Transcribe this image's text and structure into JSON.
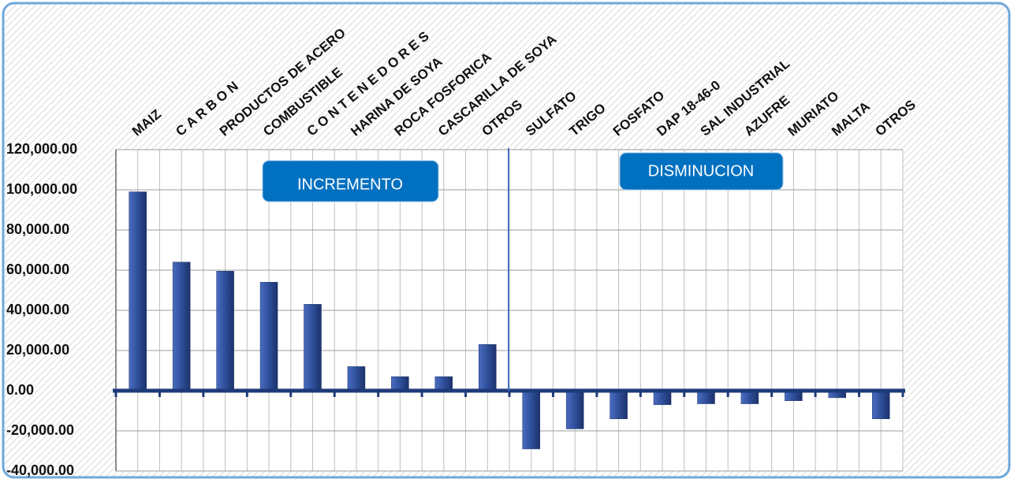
{
  "chart_data": {
    "type": "bar",
    "categories": [
      "MAIZ",
      "C A R B O N",
      "PRODUCTOS DE ACERO",
      "COMBUSTIBLE",
      "C O N T E N E D O R E S",
      "HARINA DE SOYA",
      "ROCA FOSFORICA",
      "CASCARILLA DE SOYA",
      "OTROS",
      "SULFATO",
      "TRIGO",
      "FOSFATO",
      "DAP 18-46-0",
      "SAL INDUSTRIAL",
      "AZUFRE",
      "MURIATO",
      "MALTA",
      "OTROS"
    ],
    "values": [
      99000,
      64000,
      59500,
      54000,
      43000,
      12000,
      7000,
      7000,
      23000,
      -29000,
      -19000,
      -14000,
      -7000,
      -6500,
      -6500,
      -5000,
      -3500,
      -14000
    ],
    "color": "#2f4f9a",
    "ylim": [
      -40000,
      120000
    ],
    "yticks": [
      {
        "value": -40000,
        "label": "-40,000.00"
      },
      {
        "value": -20000,
        "label": "-20,000.00"
      },
      {
        "value": 0,
        "label": "0.00"
      },
      {
        "value": 20000,
        "label": "20,000.00"
      },
      {
        "value": 40000,
        "label": "40,000.00"
      },
      {
        "value": 60000,
        "label": "60,000.00"
      },
      {
        "value": 80000,
        "label": "80,000.00"
      },
      {
        "value": 100000,
        "label": "100,000.00"
      },
      {
        "value": 120000,
        "label": "120,000.00"
      }
    ],
    "grid": true,
    "annotations": [
      "INCREMENTO",
      "DISMINUCION"
    ]
  }
}
